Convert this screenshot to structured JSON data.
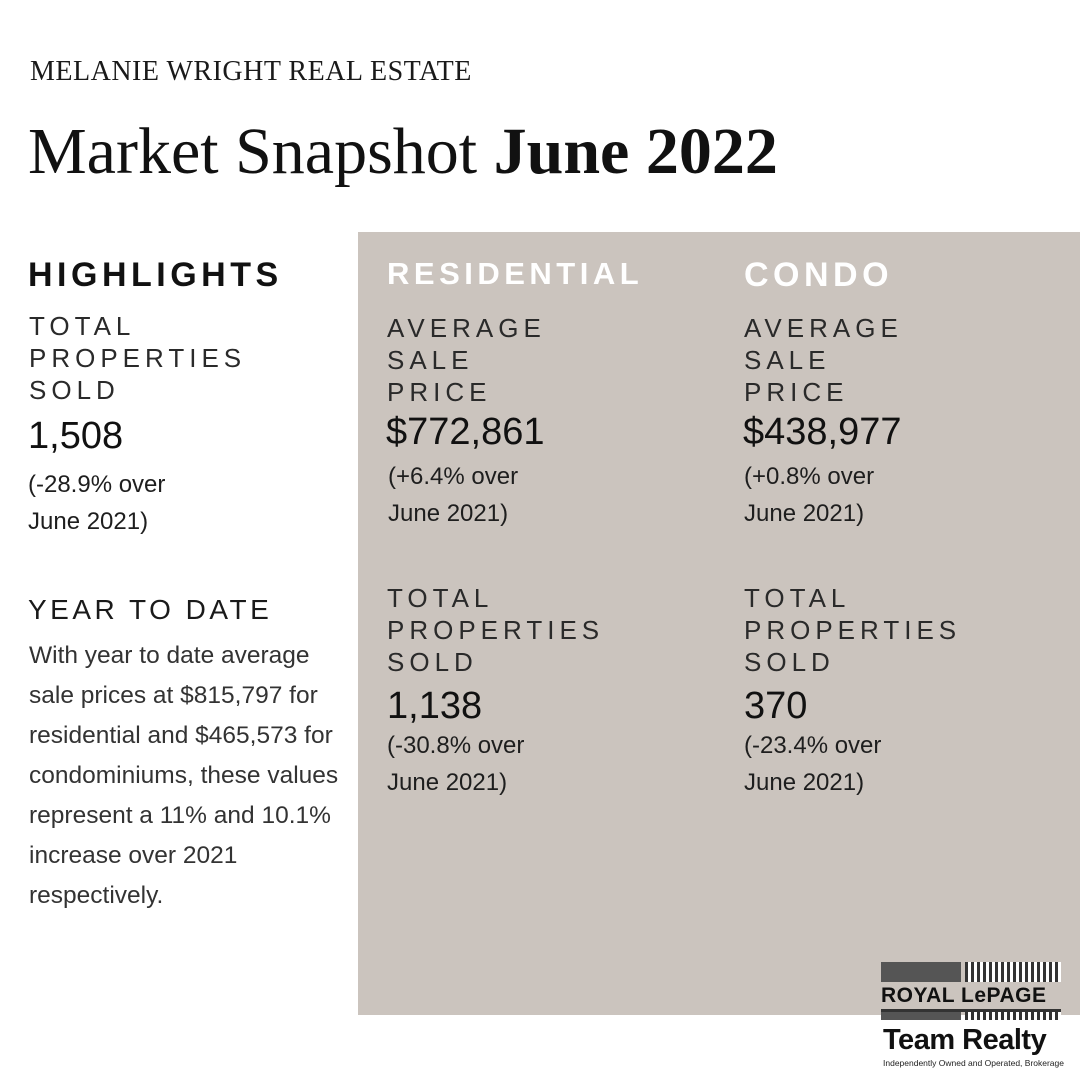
{
  "brand": "MELANIE WRIGHT REAL ESTATE",
  "title": {
    "regular": "Market Snapshot",
    "bold": "June 2022"
  },
  "highlights": {
    "heading": "HIGHLIGHTS",
    "label_lines": [
      "TOTAL",
      "PROPERTIES",
      "SOLD"
    ],
    "value": "1,508",
    "change_lines": [
      "(-28.9% over",
      "June 2021)"
    ]
  },
  "year_to_date": {
    "heading": "YEAR TO DATE",
    "text": "With year to date average sale prices at $815,797 for residential and $465,573 for condominiums, these values represent a 11% and 10.1% increase over 2021 respectively."
  },
  "residential": {
    "heading": "RESIDENTIAL",
    "avg_label_lines": [
      "AVERAGE",
      "SALE",
      "PRICE"
    ],
    "avg_value": "$772,861",
    "avg_change_lines": [
      "(+6.4% over",
      "June 2021)"
    ],
    "sold_label_lines": [
      "TOTAL",
      "PROPERTIES",
      "SOLD"
    ],
    "sold_value": "1,138",
    "sold_change_lines": [
      "(-30.8% over",
      "June 2021)"
    ]
  },
  "condo": {
    "heading": "CONDO",
    "avg_label_lines": [
      "AVERAGE",
      "SALE",
      "PRICE"
    ],
    "avg_value": "$438,977",
    "avg_change_lines": [
      "(+0.8% over",
      "June 2021)"
    ],
    "sold_label_lines": [
      "TOTAL",
      "PROPERTIES",
      "SOLD"
    ],
    "sold_value": "370",
    "sold_change_lines": [
      "(-23.4% over",
      "June 2021)"
    ]
  },
  "logo": {
    "line1": "ROYAL LePAGE",
    "line2": "Team Realty",
    "tagline": "Independently Owned and Operated, Brokerage"
  },
  "colors": {
    "panel": "#cbc4be",
    "panel_heading": "#ffffff",
    "text": "#111111"
  }
}
